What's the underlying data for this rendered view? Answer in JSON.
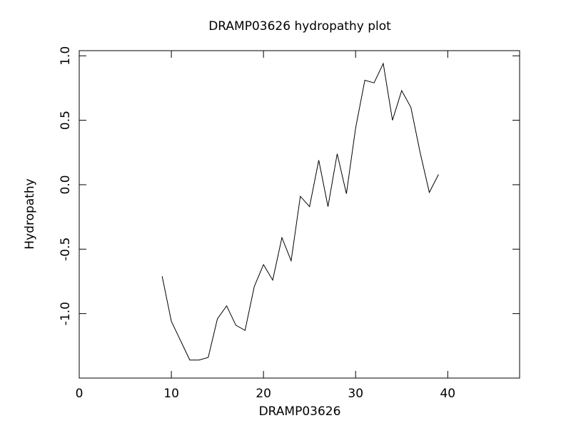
{
  "chart_data": {
    "type": "line",
    "title": "DRAMP03626 hydropathy plot",
    "xlabel": "DRAMP03626",
    "ylabel": "Hydropathy",
    "x": [
      9,
      10,
      11,
      12,
      13,
      14,
      15,
      16,
      17,
      18,
      19,
      20,
      21,
      22,
      23,
      24,
      25,
      26,
      27,
      28,
      29,
      30,
      31,
      32,
      33,
      34,
      35,
      36,
      37,
      38,
      39
    ],
    "series": [
      {
        "color": "#000000",
        "values": [
          -0.71,
          -1.06,
          -1.21,
          -1.36,
          -1.36,
          -1.34,
          -1.04,
          -0.94,
          -1.09,
          -1.13,
          -0.79,
          -0.62,
          -0.74,
          -0.41,
          -0.59,
          -0.09,
          -0.17,
          0.19,
          -0.17,
          0.24,
          -0.07,
          0.44,
          0.81,
          0.79,
          0.94,
          0.5,
          0.73,
          0.6,
          0.25,
          -0.06,
          0.08
        ]
      }
    ],
    "xlim": [
      0,
      47.8
    ],
    "ylim": [
      -1.5,
      1.04
    ],
    "xticks": [
      0,
      10,
      20,
      30,
      40
    ],
    "yticks": [
      {
        "value": -1,
        "label": "-1.0"
      },
      {
        "value": -0.5,
        "label": "-0.5"
      },
      {
        "value": 0,
        "label": "0.0"
      },
      {
        "value": 0.5,
        "label": "0.5"
      },
      {
        "value": 1,
        "label": "1.0"
      }
    ]
  }
}
